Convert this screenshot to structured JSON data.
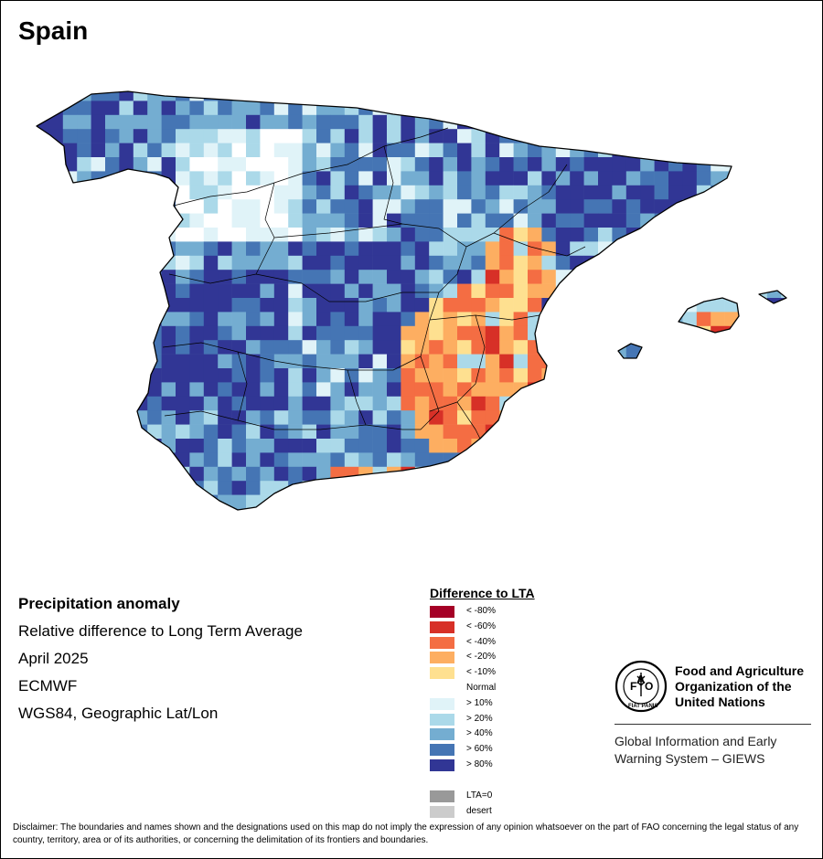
{
  "title": "Spain",
  "info": {
    "heading": "Precipitation anomaly",
    "line1": "Relative difference to Long Term Average",
    "line2": "April 2025",
    "line3": "ECMWF",
    "line4": "WGS84, Geographic Lat/Lon"
  },
  "legend": {
    "title": "Difference to LTA",
    "normal_label": "Normal",
    "dry": [
      {
        "label": "< -80%",
        "color": "#a50026"
      },
      {
        "label": "< -60%",
        "color": "#d73027"
      },
      {
        "label": "< -40%",
        "color": "#f46d43"
      },
      {
        "label": "< -20%",
        "color": "#fdae61"
      },
      {
        "label": "< -10%",
        "color": "#fee090"
      }
    ],
    "wet": [
      {
        "label": "> 10%",
        "color": "#e0f3f8"
      },
      {
        "label": "> 20%",
        "color": "#abd9e9"
      },
      {
        "label": "> 40%",
        "color": "#74add1"
      },
      {
        "label": "> 60%",
        "color": "#4575b4"
      },
      {
        "label": "> 80%",
        "color": "#313695"
      }
    ],
    "other": [
      {
        "label": "LTA=0",
        "color": "#999999"
      },
      {
        "label": "desert",
        "color": "#cccccc"
      }
    ]
  },
  "fao": {
    "emblem_text": "FIAT PANIS",
    "org_line1": "Food and Agriculture",
    "org_line2": "Organization of the",
    "org_line3": "United Nations",
    "giews_line1": "Global Information and Early",
    "giews_line2": "Warning System – GIEWS"
  },
  "disclaimer": "Disclaimer: The boundaries and names shown and the designations used on this map do not imply the expression of any opinion whatsoever on the part of FAO concerning the legal status of any country, territory, area or of its authorities, or concerning the delimitation of its frontiers and boundaries."
}
